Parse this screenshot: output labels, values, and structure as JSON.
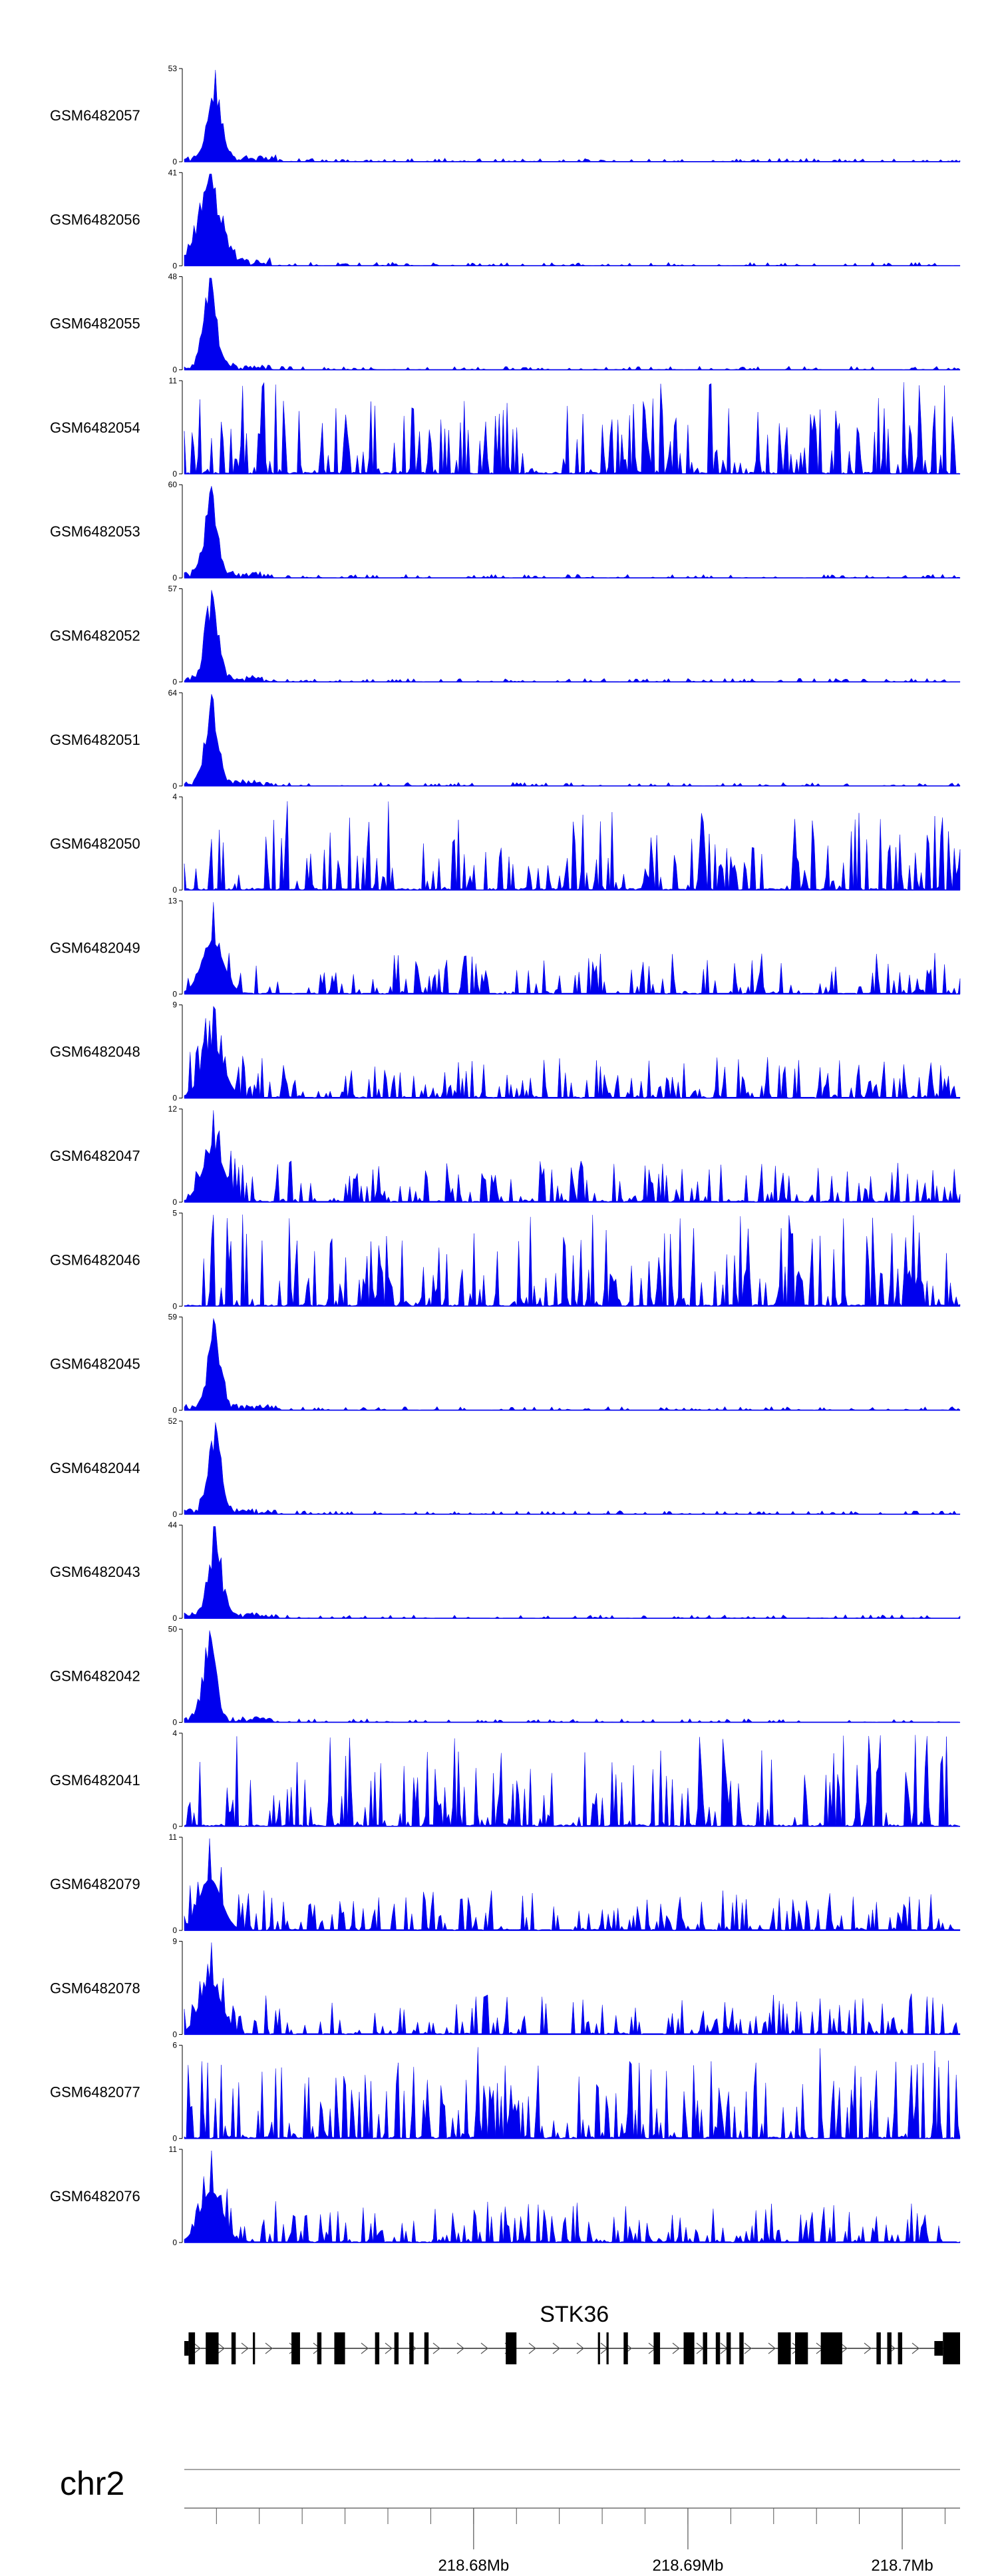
{
  "chart_data": {
    "type": "area",
    "x_unit": "Mb",
    "x_range": [
      218.6665,
      218.7027
    ],
    "color": "#0000ee",
    "gene": {
      "name": "STK36",
      "strand": "+",
      "exons_mb": [
        [
          218.6667,
          218.667
        ],
        [
          218.6675,
          218.6681
        ],
        [
          218.6687,
          218.6689
        ],
        [
          218.6697,
          218.6698
        ],
        [
          218.6715,
          218.6719
        ],
        [
          218.6727,
          218.6729
        ],
        [
          218.6735,
          218.674
        ],
        [
          218.6754,
          218.6756
        ],
        [
          218.6763,
          218.6765
        ],
        [
          218.677,
          218.6772
        ],
        [
          218.6777,
          218.6779
        ],
        [
          218.6815,
          218.682
        ],
        [
          218.6858,
          218.6859
        ],
        [
          218.6862,
          218.6863
        ],
        [
          218.687,
          218.6872
        ],
        [
          218.6884,
          218.6887
        ],
        [
          218.6898,
          218.6903
        ],
        [
          218.6907,
          218.6909
        ],
        [
          218.6913,
          218.6915
        ],
        [
          218.6918,
          218.692
        ],
        [
          218.6924,
          218.6926
        ],
        [
          218.6942,
          218.6948
        ],
        [
          218.695,
          218.6956
        ],
        [
          218.6962,
          218.6972
        ],
        [
          218.6988,
          218.699
        ],
        [
          218.6993,
          218.6995
        ],
        [
          218.6998,
          218.7
        ],
        [
          218.7019,
          218.7027
        ]
      ],
      "utr_mb": [
        [
          218.6665,
          218.6667
        ],
        [
          218.7015,
          218.7019
        ]
      ]
    },
    "chromosome": "chr2",
    "x_ticks": [
      {
        "pos": 218.68,
        "label": "218.68Mb"
      },
      {
        "pos": 218.69,
        "label": "218.69Mb"
      },
      {
        "pos": 218.7,
        "label": "218.7Mb"
      }
    ],
    "tracks": [
      {
        "name": "GSM6482057",
        "ymax": "53",
        "peak": 53,
        "kind": "peak",
        "seed": 11
      },
      {
        "name": "GSM6482056",
        "ymax": "41",
        "peak": 41,
        "kind": "broadpeak",
        "seed": 12
      },
      {
        "name": "GSM6482055",
        "ymax": "48",
        "peak": 48,
        "kind": "peak",
        "seed": 13
      },
      {
        "name": "GSM6482054",
        "ymax": "11",
        "peak": 11,
        "kind": "noise",
        "seed": 14
      },
      {
        "name": "GSM6482053",
        "ymax": "60",
        "peak": 60,
        "kind": "peak",
        "seed": 15
      },
      {
        "name": "GSM6482052",
        "ymax": "57",
        "peak": 57,
        "kind": "peak",
        "seed": 16
      },
      {
        "name": "GSM6482051",
        "ymax": "64",
        "peak": 64,
        "kind": "peak",
        "seed": 17
      },
      {
        "name": "GSM6482050",
        "ymax": "4",
        "peak": 4,
        "kind": "noise",
        "seed": 18
      },
      {
        "name": "GSM6482049",
        "ymax": "13",
        "peak": 13,
        "kind": "mid",
        "seed": 19
      },
      {
        "name": "GSM6482048",
        "ymax": "9",
        "peak": 9,
        "kind": "mid",
        "seed": 20
      },
      {
        "name": "GSM6482047",
        "ymax": "12",
        "peak": 12,
        "kind": "mid",
        "seed": 21
      },
      {
        "name": "GSM6482046",
        "ymax": "5",
        "peak": 5,
        "kind": "noise",
        "seed": 22
      },
      {
        "name": "GSM6482045",
        "ymax": "59",
        "peak": 59,
        "kind": "peak",
        "seed": 23
      },
      {
        "name": "GSM6482044",
        "ymax": "52",
        "peak": 52,
        "kind": "peak",
        "seed": 24
      },
      {
        "name": "GSM6482043",
        "ymax": "44",
        "peak": 44,
        "kind": "peak",
        "seed": 25
      },
      {
        "name": "GSM6482042",
        "ymax": "50",
        "peak": 50,
        "kind": "peak",
        "seed": 26
      },
      {
        "name": "GSM6482041",
        "ymax": "4",
        "peak": 4,
        "kind": "noise",
        "seed": 27
      },
      {
        "name": "GSM6482079",
        "ymax": "11",
        "peak": 11,
        "kind": "mid",
        "seed": 28
      },
      {
        "name": "GSM6482078",
        "ymax": "9",
        "peak": 9,
        "kind": "mid",
        "seed": 29
      },
      {
        "name": "GSM6482077",
        "ymax": "6",
        "peak": 6,
        "kind": "noise",
        "seed": 30
      },
      {
        "name": "GSM6482076",
        "ymax": "11",
        "peak": 11,
        "kind": "mid",
        "seed": 31
      }
    ]
  }
}
